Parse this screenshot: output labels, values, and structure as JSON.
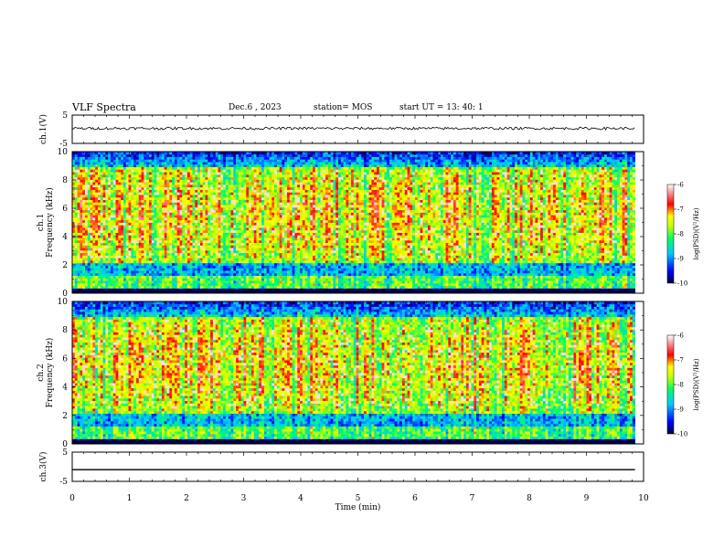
{
  "header": {
    "title": "VLF Spectra",
    "date": "Dec.6 , 2023",
    "station": "station= MOS",
    "start": "start UT = 13: 40: 1"
  },
  "chart_data": [
    {
      "type": "line",
      "panel": "ch1-waveform",
      "ylabel": "ch.1(V)",
      "ylim": [
        -5,
        5
      ],
      "yticks": [
        "5",
        "-5"
      ],
      "xlim": [
        0,
        10
      ],
      "series": [
        {
          "values_description": "noisy trace near",
          "level": 0.3
        }
      ]
    },
    {
      "type": "heatmap",
      "panel": "ch1-spectrogram",
      "ylabel": "ch.1\nFrequency (kHz)",
      "ylim": [
        0,
        10
      ],
      "yticks": [
        "0",
        "2",
        "4",
        "6",
        "8",
        "10"
      ],
      "xlim": [
        0,
        10
      ],
      "data_end_min": 9.85,
      "colorbar": {
        "label": "log(PSD)(V²/Hz)",
        "range": [
          -10,
          -6
        ],
        "ticks": [
          "-6",
          "-7",
          "-8",
          "-9",
          "-10"
        ]
      }
    },
    {
      "type": "heatmap",
      "panel": "ch2-spectrogram",
      "ylabel": "ch.2\nFrequency (kHz)",
      "ylim": [
        0,
        10
      ],
      "yticks": [
        "0",
        "2",
        "4",
        "6",
        "8",
        "10"
      ],
      "xlim": [
        0,
        10
      ],
      "data_end_min": 9.85,
      "colorbar": {
        "label": "log(PSD)(V²/Hz)",
        "range": [
          -10,
          -6
        ],
        "ticks": [
          "-6",
          "-7",
          "-8",
          "-9",
          "-10"
        ]
      }
    },
    {
      "type": "line",
      "panel": "ch3-waveform",
      "ylabel": "ch.3(V)",
      "ylim": [
        -5,
        5
      ],
      "yticks": [
        "5",
        "-5"
      ],
      "xlim": [
        0,
        10
      ],
      "series": [
        {
          "level": -1.0
        }
      ]
    }
  ],
  "xaxis": {
    "label": "Time (min)",
    "ticks": [
      "0",
      "1",
      "2",
      "3",
      "4",
      "5",
      "6",
      "7",
      "8",
      "9",
      "10"
    ]
  },
  "colors": {
    "colormap": [
      "#00004b",
      "#0000ff",
      "#00c8ff",
      "#00ff64",
      "#c8ff00",
      "#ffff00",
      "#ff0000",
      "#ffffff"
    ]
  }
}
